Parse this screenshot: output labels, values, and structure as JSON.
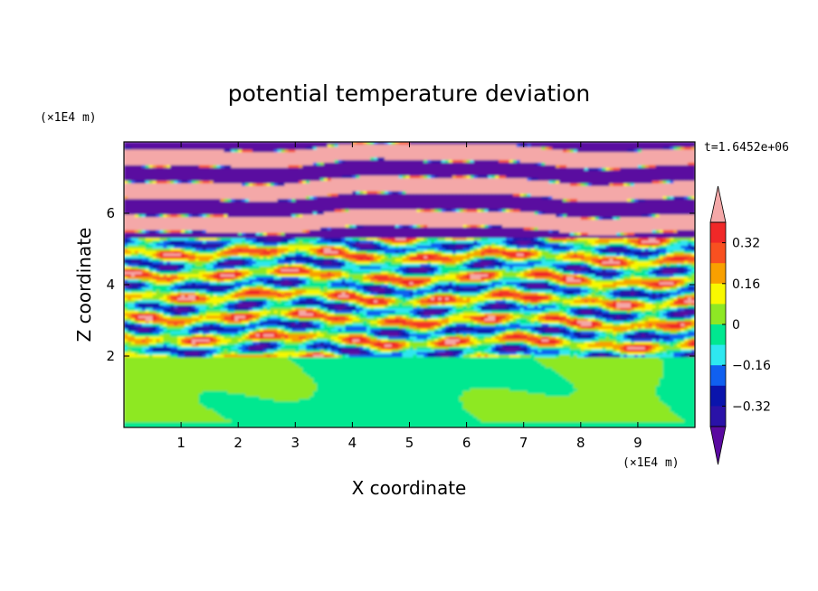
{
  "chart_data": {
    "type": "heatmap",
    "title": "potential temperature deviation",
    "xlabel": "X coordinate",
    "ylabel": "Z coordinate",
    "x_unit": "(×1E4 m)",
    "y_unit": "(×1E4 m)",
    "time_label": "t=1.6452e+06",
    "xlim": [
      0,
      10
    ],
    "ylim": [
      0,
      8
    ],
    "x_ticks": [
      1,
      2,
      3,
      4,
      5,
      6,
      7,
      8,
      9
    ],
    "y_ticks": [
      2,
      4,
      6
    ],
    "colorbar": {
      "tick_values": [
        0.32,
        0.16,
        0,
        -0.16,
        -0.32
      ],
      "tick_labels": [
        "0.32",
        "0.16",
        "0",
        "−0.16",
        "−0.32"
      ],
      "levels": [
        -0.4,
        -0.32,
        -0.24,
        -0.16,
        -0.08,
        0,
        0.08,
        0.16,
        0.24,
        0.32,
        0.4
      ],
      "colors": [
        "#5a0aa0",
        "#2a12a8",
        "#0a14ac",
        "#1060f0",
        "#2ee8f0",
        "#00e890",
        "#8ee824",
        "#f8f800",
        "#f8a000",
        "#f85020",
        "#f02828",
        "#f4a8a8"
      ],
      "extend": "both"
    },
    "layers": [
      {
        "z_range": [
          0,
          2.0
        ],
        "description_level": 0.0
      },
      {
        "z_range": [
          2.0,
          5.3
        ],
        "description_level": "mixed"
      },
      {
        "z_range": [
          5.3,
          8.0
        ],
        "description_level": "alternating"
      }
    ]
  }
}
